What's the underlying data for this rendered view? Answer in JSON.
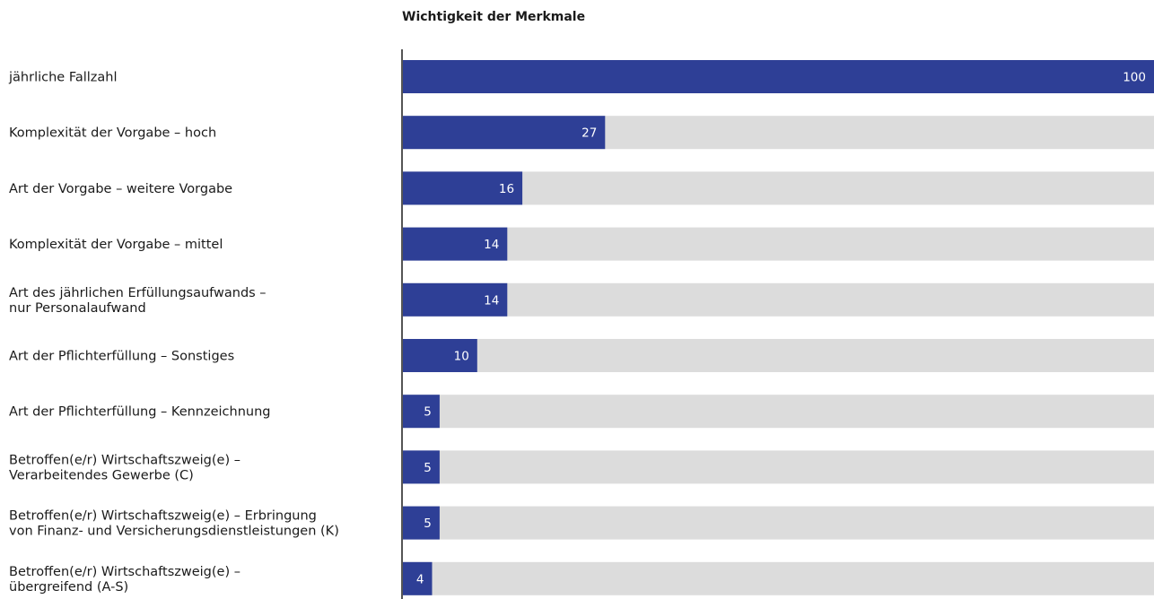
{
  "chart_data": {
    "type": "bar",
    "orientation": "horizontal",
    "title": "Wichtigkeit der Merkmale",
    "xlabel": "",
    "ylabel": "",
    "xlim": [
      0,
      100
    ],
    "grid": false,
    "legend": "none",
    "categories": [
      [
        "jährliche Fallzahl"
      ],
      [
        "Komplexität der Vorgabe – hoch"
      ],
      [
        "Art der Vorgabe – weitere Vorgabe"
      ],
      [
        "Komplexität der Vorgabe – mittel"
      ],
      [
        "Art des jährlichen Erfüllungsaufwands –",
        "nur Personalaufwand"
      ],
      [
        "Art der Pflichterfüllung – Sonstiges"
      ],
      [
        "Art der Pflichterfüllung – Kennzeichnung"
      ],
      [
        "Betroffen(e/r) Wirtschaftszweig(e) –",
        "Verarbeitendes Gewerbe (C)"
      ],
      [
        "Betroffen(e/r) Wirtschaftszweig(e) – Erbringung",
        "von Finanz- und Versicherungsdienstleistungen (K)"
      ],
      [
        "Betroffen(e/r) Wirtschaftszweig(e) –",
        "übergreifend (A-S)"
      ]
    ],
    "values": [
      100,
      27,
      16,
      14,
      14,
      10,
      5,
      5,
      5,
      4
    ],
    "colors": {
      "bar": "#2e3f96",
      "track": "#dcdcdc",
      "axis": "#555555",
      "value_text": "#ffffff"
    }
  }
}
